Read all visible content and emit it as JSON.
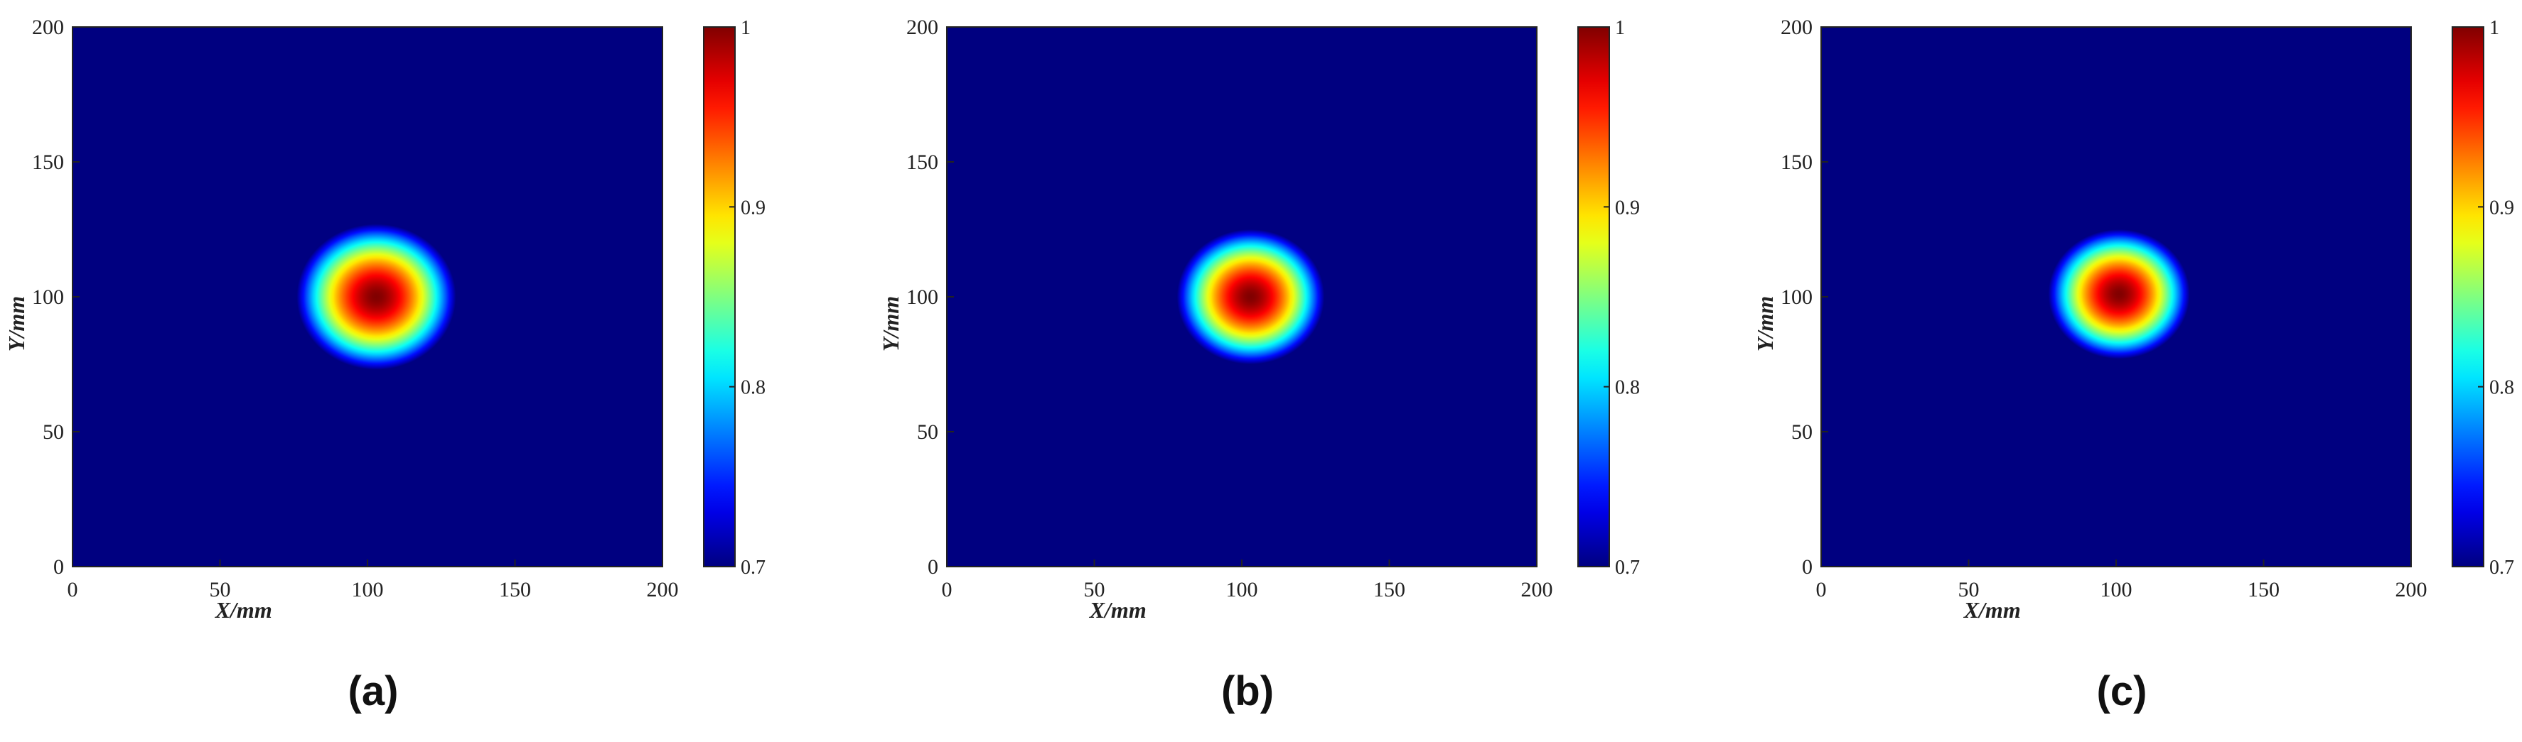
{
  "figure": {
    "panels": [
      {
        "label": "(a)"
      },
      {
        "label": "(b)"
      },
      {
        "label": "(c)"
      }
    ]
  },
  "chart_data": [
    {
      "type": "heatmap",
      "panel": "(a)",
      "xlabel": "X/mm",
      "ylabel": "Y/mm",
      "xlim": [
        0,
        200
      ],
      "ylim": [
        0,
        200
      ],
      "xticks": [
        0,
        50,
        100,
        150,
        200
      ],
      "yticks": [
        0,
        50,
        100,
        150,
        200
      ],
      "colormap": "jet",
      "clim": [
        0.7,
        1
      ],
      "colorbar_ticks": [
        0.7,
        0.8,
        0.9,
        1
      ],
      "colorbar_tick_labels": [
        "0.7",
        "0.8",
        "0.9",
        "1"
      ],
      "background_value": 0.7,
      "hotspot": {
        "center_x": 103,
        "center_y": 100,
        "radius": 27,
        "peak": 1.0
      }
    },
    {
      "type": "heatmap",
      "panel": "(b)",
      "xlabel": "X/mm",
      "ylabel": "Y/mm",
      "xlim": [
        0,
        200
      ],
      "ylim": [
        0,
        200
      ],
      "xticks": [
        0,
        50,
        100,
        150,
        200
      ],
      "yticks": [
        0,
        50,
        100,
        150,
        200
      ],
      "colormap": "jet",
      "clim": [
        0.7,
        1
      ],
      "colorbar_ticks": [
        0.7,
        0.8,
        0.9,
        1
      ],
      "colorbar_tick_labels": [
        "0.7",
        "0.8",
        "0.9",
        "1"
      ],
      "background_value": 0.7,
      "hotspot": {
        "center_x": 103,
        "center_y": 100,
        "radius": 25,
        "peak": 1.0
      }
    },
    {
      "type": "heatmap",
      "panel": "(c)",
      "xlabel": "X/mm",
      "ylabel": "Y/mm",
      "xlim": [
        0,
        200
      ],
      "ylim": [
        0,
        200
      ],
      "xticks": [
        0,
        50,
        100,
        150,
        200
      ],
      "yticks": [
        0,
        50,
        100,
        150,
        200
      ],
      "colormap": "jet",
      "clim": [
        0.7,
        1
      ],
      "colorbar_ticks": [
        0.7,
        0.8,
        0.9,
        1
      ],
      "colorbar_tick_labels": [
        "0.7",
        "0.8",
        "0.9",
        "1"
      ],
      "background_value": 0.7,
      "hotspot": {
        "center_x": 101,
        "center_y": 101,
        "radius": 24,
        "peak": 1.0
      }
    }
  ]
}
